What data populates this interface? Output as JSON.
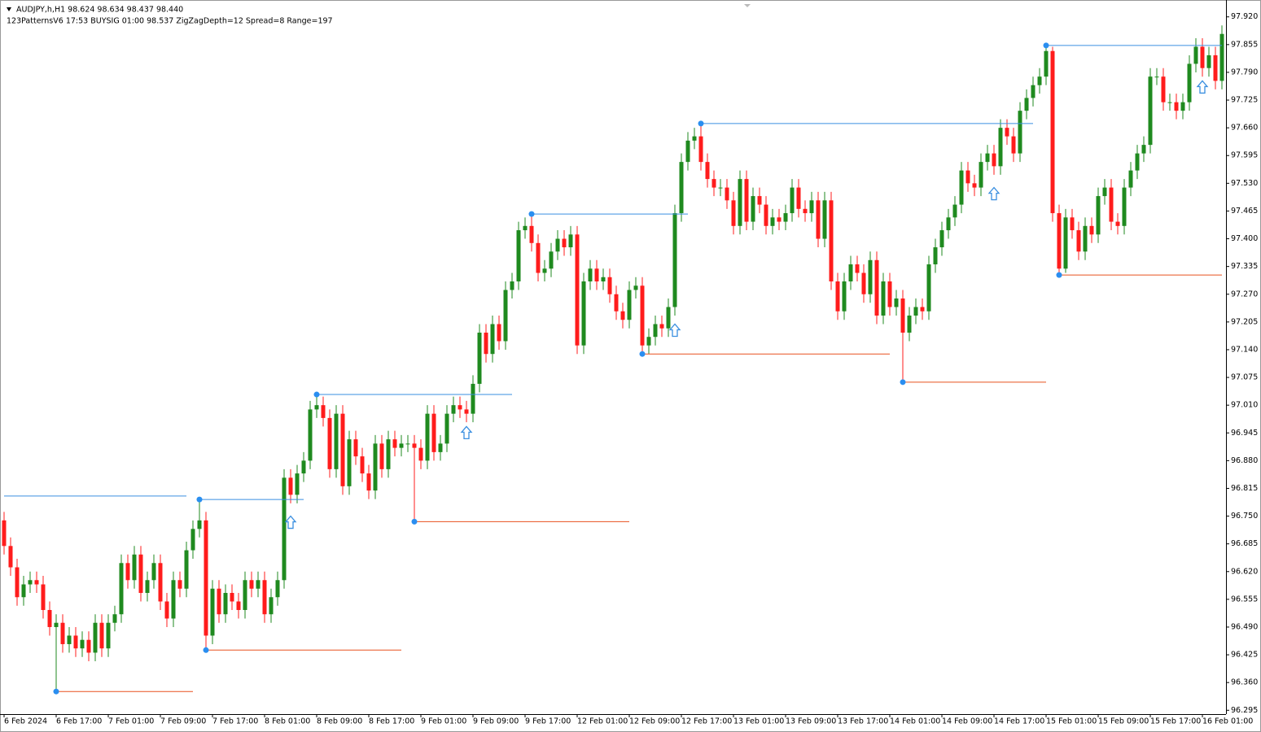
{
  "chart_data": {
    "type": "candlestick",
    "header": "AUDJPY,h,H1  98.624 98.634 98.437 98.440",
    "indicator": "123PatternsV6  17:53  BUYSIG  01:00  98.537  ZigZagDepth=12  Spread=8  Range=197",
    "up_color": "#1f8a1f",
    "down_color": "#ff1c1c",
    "categories": [
      "6 Feb 2024",
      null,
      null,
      null,
      null,
      null,
      null,
      null,
      "6 Feb 17:00",
      null,
      null,
      null,
      null,
      null,
      null,
      null,
      "7 Feb 01:00",
      null,
      null,
      null,
      null,
      null,
      null,
      null,
      "7 Feb 09:00",
      null,
      null,
      null,
      null,
      null,
      null,
      null,
      "7 Feb 17:00",
      null,
      null,
      null,
      null,
      null,
      null,
      null,
      "8 Feb 01:00",
      null,
      null,
      null,
      null,
      null,
      null,
      null,
      "8 Feb 09:00",
      null,
      null,
      null,
      null,
      null,
      null,
      null,
      "8 Feb 17:00",
      null,
      null,
      null,
      null,
      null,
      null,
      null,
      "9 Feb 01:00",
      null,
      null,
      null,
      null,
      null,
      null,
      null,
      "9 Feb 09:00",
      null,
      null,
      null,
      null,
      null,
      null,
      null,
      "9 Feb 17:00",
      null,
      null,
      null,
      null,
      null,
      null,
      null,
      "12 Feb 01:00",
      null,
      null,
      null,
      null,
      null,
      null,
      null,
      "12 Feb 09:00",
      null,
      null,
      null,
      null,
      null,
      null,
      null,
      "12 Feb 17:00",
      null,
      null,
      null,
      null,
      null,
      null,
      null,
      "13 Feb 01:00",
      null,
      null,
      null,
      null,
      null,
      null,
      null,
      "13 Feb 09:00",
      null,
      null,
      null,
      null,
      null,
      null,
      null,
      "13 Feb 17:00",
      null,
      null,
      null,
      null,
      null,
      null,
      null,
      "14 Feb 01:00",
      null,
      null,
      null,
      null,
      null,
      null,
      null,
      "14 Feb 09:00",
      null,
      null,
      null,
      null,
      null,
      null,
      null,
      "14 Feb 17:00",
      null,
      null,
      null,
      null,
      null,
      null,
      null,
      "15 Feb 01:00",
      null,
      null,
      null,
      null,
      null,
      null,
      null,
      "15 Feb 09:00",
      null,
      null,
      null,
      null,
      null,
      null,
      null,
      "15 Feb 17:00",
      null,
      null,
      null,
      null,
      null,
      null,
      null,
      "16 Feb 01:00",
      null,
      null,
      null
    ],
    "open": [
      96.74,
      96.68,
      96.63,
      96.56,
      96.59,
      96.6,
      96.59,
      96.53,
      96.49,
      96.5,
      96.45,
      96.47,
      96.44,
      96.46,
      96.43,
      96.5,
      96.44,
      96.5,
      96.52,
      96.64,
      96.6,
      96.66,
      96.57,
      96.6,
      96.64,
      96.55,
      96.51,
      96.6,
      96.58,
      96.67,
      96.72,
      96.74,
      96.47,
      96.58,
      96.52,
      96.57,
      96.55,
      96.53,
      96.6,
      96.58,
      96.6,
      96.52,
      96.56,
      96.6,
      96.84,
      96.8,
      96.85,
      96.88,
      97.0,
      97.01,
      96.98,
      96.86,
      96.99,
      96.82,
      96.93,
      96.89,
      96.85,
      96.81,
      96.92,
      96.86,
      96.93,
      96.91,
      96.92,
      96.92,
      96.91,
      96.88,
      96.99,
      96.9,
      96.92,
      96.99,
      97.01,
      97.0,
      96.99,
      97.06,
      97.18,
      97.13,
      97.2,
      97.16,
      97.28,
      97.3,
      97.42,
      97.43,
      97.39,
      97.32,
      97.33,
      97.37,
      97.4,
      97.38,
      97.41,
      97.15,
      97.3,
      97.33,
      97.3,
      97.31,
      97.27,
      97.23,
      97.21,
      97.28,
      97.29,
      97.15,
      97.17,
      97.2,
      97.19,
      97.24,
      97.46,
      97.58,
      97.63,
      97.64,
      97.58,
      97.54,
      97.52,
      97.52,
      97.49,
      97.43,
      97.54,
      97.44,
      97.5,
      97.48,
      97.43,
      97.45,
      97.44,
      97.46,
      97.52,
      97.47,
      97.46,
      97.49,
      97.4,
      97.49,
      97.3,
      97.23,
      97.3,
      97.34,
      97.32,
      97.27,
      97.35,
      97.22,
      97.3,
      97.24,
      97.26,
      97.18,
      97.22,
      97.24,
      97.23,
      97.34,
      97.38,
      97.42,
      97.45,
      97.48,
      97.56,
      97.53,
      97.52,
      97.58,
      97.6,
      97.57,
      97.66,
      97.64,
      97.6,
      97.7,
      97.73,
      97.76,
      97.78,
      97.84,
      97.46,
      97.33,
      97.45,
      97.42,
      97.37,
      97.43,
      97.41,
      97.5,
      97.52,
      97.44,
      97.43,
      97.52,
      97.56,
      97.6,
      97.62,
      97.78,
      97.78,
      97.72,
      97.72,
      97.7,
      97.72,
      97.81,
      97.85,
      97.8,
      97.83,
      97.77
    ],
    "high": [
      96.76,
      96.7,
      96.65,
      96.61,
      96.62,
      96.62,
      96.61,
      96.55,
      96.52,
      96.52,
      96.49,
      96.49,
      96.48,
      96.48,
      96.52,
      96.52,
      96.52,
      96.54,
      96.66,
      96.66,
      96.68,
      96.68,
      96.62,
      96.66,
      96.66,
      96.57,
      96.62,
      96.62,
      96.69,
      96.74,
      96.789,
      96.76,
      96.6,
      96.6,
      96.59,
      96.59,
      96.57,
      96.62,
      96.62,
      96.62,
      96.62,
      96.58,
      96.62,
      96.86,
      96.86,
      96.87,
      96.9,
      97.02,
      97.035,
      97.03,
      97.0,
      97.01,
      97.01,
      96.95,
      96.95,
      96.91,
      96.87,
      96.94,
      96.94,
      96.95,
      96.95,
      96.94,
      96.94,
      96.94,
      96.93,
      97.01,
      97.01,
      96.94,
      97.01,
      97.03,
      97.03,
      97.02,
      97.08,
      97.2,
      97.2,
      97.22,
      97.22,
      97.3,
      97.32,
      97.44,
      97.45,
      97.458,
      97.41,
      97.35,
      97.39,
      97.42,
      97.42,
      97.43,
      97.43,
      97.32,
      97.35,
      97.35,
      97.33,
      97.33,
      97.29,
      97.25,
      97.3,
      97.31,
      97.31,
      97.19,
      97.22,
      97.22,
      97.26,
      97.48,
      97.6,
      97.65,
      97.66,
      97.67,
      97.6,
      97.56,
      97.54,
      97.54,
      97.51,
      97.56,
      97.56,
      97.52,
      97.52,
      97.5,
      97.47,
      97.47,
      97.48,
      97.54,
      97.54,
      97.49,
      97.51,
      97.51,
      97.51,
      97.51,
      97.32,
      97.32,
      97.36,
      97.36,
      97.34,
      97.37,
      97.37,
      97.32,
      97.32,
      97.28,
      97.28,
      97.24,
      97.26,
      97.26,
      97.36,
      97.4,
      97.44,
      97.47,
      97.5,
      97.58,
      97.58,
      97.55,
      97.6,
      97.62,
      97.62,
      97.68,
      97.68,
      97.66,
      97.72,
      97.75,
      97.78,
      97.8,
      97.853,
      97.85,
      97.48,
      97.47,
      97.47,
      97.44,
      97.45,
      97.45,
      97.52,
      97.54,
      97.54,
      97.46,
      97.54,
      97.58,
      97.62,
      97.64,
      97.8,
      97.8,
      97.8,
      97.74,
      97.74,
      97.74,
      97.83,
      97.87,
      97.87,
      97.85,
      97.85,
      97.9
    ],
    "low": [
      96.66,
      96.61,
      96.54,
      96.54,
      96.57,
      96.57,
      96.51,
      96.47,
      96.339,
      96.43,
      96.43,
      96.42,
      96.42,
      96.41,
      96.41,
      96.42,
      96.42,
      96.48,
      96.5,
      96.58,
      96.58,
      96.55,
      96.55,
      96.58,
      96.53,
      96.49,
      96.49,
      96.56,
      96.56,
      96.65,
      96.7,
      96.436,
      96.45,
      96.5,
      96.5,
      96.53,
      96.51,
      96.51,
      96.56,
      96.56,
      96.5,
      96.5,
      96.54,
      96.58,
      96.78,
      96.78,
      96.83,
      96.86,
      96.98,
      96.96,
      96.84,
      96.84,
      96.8,
      96.8,
      96.87,
      96.83,
      96.79,
      96.79,
      96.84,
      96.84,
      96.89,
      96.89,
      96.9,
      96.737,
      96.86,
      96.86,
      96.88,
      96.88,
      96.9,
      96.97,
      96.98,
      96.97,
      96.97,
      97.04,
      97.11,
      97.11,
      97.14,
      97.14,
      97.26,
      97.28,
      97.4,
      97.37,
      97.3,
      97.3,
      97.31,
      97.35,
      97.36,
      97.36,
      97.13,
      97.13,
      97.28,
      97.28,
      97.28,
      97.25,
      97.21,
      97.19,
      97.19,
      97.26,
      97.13,
      97.13,
      97.15,
      97.17,
      97.17,
      97.22,
      97.44,
      97.56,
      97.61,
      97.56,
      97.52,
      97.5,
      97.5,
      97.47,
      97.41,
      97.41,
      97.42,
      97.42,
      97.46,
      97.41,
      97.41,
      97.42,
      97.42,
      97.44,
      97.45,
      97.44,
      97.44,
      97.38,
      97.38,
      97.28,
      97.21,
      97.21,
      97.28,
      97.3,
      97.25,
      97.25,
      97.2,
      97.2,
      97.22,
      97.22,
      97.064,
      97.16,
      97.2,
      97.21,
      97.21,
      97.32,
      97.36,
      97.4,
      97.43,
      97.46,
      97.51,
      97.5,
      97.5,
      97.56,
      97.55,
      97.55,
      97.62,
      97.58,
      97.58,
      97.68,
      97.71,
      97.74,
      97.76,
      97.44,
      97.315,
      97.32,
      97.4,
      97.35,
      97.35,
      97.39,
      97.39,
      97.48,
      97.42,
      97.41,
      97.41,
      97.5,
      97.54,
      97.58,
      97.6,
      97.76,
      97.7,
      97.7,
      97.68,
      97.68,
      97.7,
      97.79,
      97.78,
      97.78,
      97.75,
      97.75
    ],
    "close": [
      96.68,
      96.63,
      96.56,
      96.59,
      96.6,
      96.59,
      96.53,
      96.49,
      96.5,
      96.45,
      96.47,
      96.44,
      96.46,
      96.43,
      96.5,
      96.44,
      96.5,
      96.52,
      96.64,
      96.6,
      96.66,
      96.57,
      96.6,
      96.64,
      96.55,
      96.51,
      96.6,
      96.58,
      96.67,
      96.72,
      96.74,
      96.47,
      96.58,
      96.52,
      96.57,
      96.55,
      96.53,
      96.6,
      96.58,
      96.6,
      96.52,
      96.56,
      96.6,
      96.84,
      96.8,
      96.85,
      96.88,
      97.0,
      97.01,
      96.98,
      96.86,
      96.99,
      96.82,
      96.93,
      96.89,
      96.85,
      96.81,
      96.92,
      96.86,
      96.93,
      96.91,
      96.92,
      96.92,
      96.91,
      96.88,
      96.99,
      96.9,
      96.92,
      96.99,
      97.01,
      97.0,
      96.99,
      97.06,
      97.18,
      97.13,
      97.2,
      97.16,
      97.28,
      97.3,
      97.42,
      97.43,
      97.39,
      97.32,
      97.33,
      97.37,
      97.4,
      97.38,
      97.41,
      97.15,
      97.3,
      97.33,
      97.3,
      97.31,
      97.27,
      97.23,
      97.21,
      97.28,
      97.29,
      97.15,
      97.17,
      97.2,
      97.19,
      97.24,
      97.46,
      97.58,
      97.63,
      97.64,
      97.58,
      97.54,
      97.52,
      97.52,
      97.49,
      97.43,
      97.54,
      97.44,
      97.5,
      97.48,
      97.43,
      97.45,
      97.44,
      97.46,
      97.52,
      97.47,
      97.46,
      97.49,
      97.4,
      97.49,
      97.3,
      97.23,
      97.3,
      97.34,
      97.32,
      97.27,
      97.35,
      97.22,
      97.3,
      97.24,
      97.26,
      97.18,
      97.22,
      97.24,
      97.23,
      97.34,
      97.38,
      97.42,
      97.45,
      97.48,
      97.56,
      97.53,
      97.52,
      97.58,
      97.6,
      97.57,
      97.66,
      97.64,
      97.6,
      97.7,
      97.73,
      97.76,
      97.78,
      97.84,
      97.46,
      97.33,
      97.45,
      97.42,
      97.37,
      97.43,
      97.41,
      97.5,
      97.52,
      97.44,
      97.43,
      97.52,
      97.56,
      97.6,
      97.62,
      97.78,
      97.78,
      97.72,
      97.72,
      97.7,
      97.72,
      97.81,
      97.85,
      97.8,
      97.83,
      97.77,
      97.88
    ],
    "resistance_color": "#3a8fe0",
    "support_color": "#e8501e",
    "resistance": [
      {
        "from": 0,
        "to": 28,
        "value": 96.797
      },
      {
        "from": 30,
        "to": 46,
        "value": 96.789
      },
      {
        "from": 48,
        "to": 78,
        "value": 97.035
      },
      {
        "from": 81,
        "to": 105,
        "value": 97.458
      },
      {
        "from": 107,
        "to": 158,
        "value": 97.67
      },
      {
        "from": 160,
        "to": 187,
        "value": 97.853
      }
    ],
    "support": [
      {
        "from": 8,
        "to": 29,
        "value": 96.339
      },
      {
        "from": 31,
        "to": 61,
        "value": 96.436
      },
      {
        "from": 63,
        "to": 96,
        "value": 96.737
      },
      {
        "from": 98,
        "to": 136,
        "value": 97.13
      },
      {
        "from": 138,
        "to": 160,
        "value": 97.064
      },
      {
        "from": 162,
        "to": 187,
        "value": 97.315
      }
    ],
    "signals": [
      {
        "index": 44,
        "value": 96.75
      },
      {
        "index": 71,
        "value": 96.96
      },
      {
        "index": 103,
        "value": 97.2
      },
      {
        "index": 152,
        "value": 97.52
      },
      {
        "index": 184,
        "value": 97.77
      }
    ],
    "ylim": [
      96.286,
      97.95
    ],
    "yticks": [
      {
        "value": 97.92,
        "label": "97.920"
      },
      97.855,
      {
        "value": 97.79,
        "label": "97.790"
      },
      97.725,
      {
        "value": 97.66,
        "label": "97.660"
      },
      97.595,
      {
        "value": 97.53,
        "label": "97.530"
      },
      97.465,
      {
        "value": 97.4,
        "label": "97.400"
      },
      97.335,
      {
        "value": 97.27,
        "label": "97.270"
      },
      97.205,
      {
        "value": 97.14,
        "label": "97.140"
      },
      97.075,
      {
        "value": 97.01,
        "label": "97.010"
      },
      96.945,
      {
        "value": 96.88,
        "label": "96.880"
      },
      96.815,
      {
        "value": 96.75,
        "label": "96.750"
      },
      96.685,
      {
        "value": 96.62,
        "label": "96.620"
      },
      96.555,
      {
        "value": 96.49,
        "label": "96.490"
      },
      96.425,
      {
        "value": 96.36,
        "label": "96.360"
      },
      96.295
    ]
  }
}
